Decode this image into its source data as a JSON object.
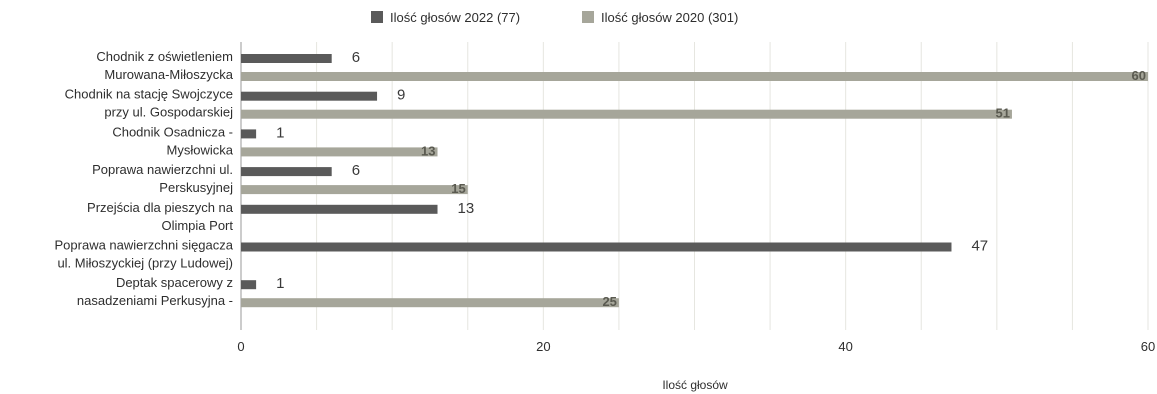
{
  "colors": {
    "series2022": "#5a5a5a",
    "series2020": "#a6a69a",
    "grid": "#e6e6e0",
    "text": "#2e2e2e"
  },
  "chart_data": {
    "type": "bar",
    "orientation": "horizontal",
    "title": "",
    "xlabel": "Ilość głosów",
    "ylabel": "",
    "xlim": [
      0,
      60
    ],
    "xticks": [
      0,
      20,
      40,
      60
    ],
    "grid": true,
    "legend_position": "top-center",
    "categories": [
      [
        "Chodnik z oświetleniem",
        "Murowana-Miłoszycka"
      ],
      [
        "Chodnik na stację Swojczyce",
        "przy ul. Gospodarskiej"
      ],
      [
        "Chodnik Osadnicza -",
        "Mysłowicka"
      ],
      [
        "Poprawa nawierzchni ul.",
        "Perskusyjnej"
      ],
      [
        "Przejścia dla pieszych na",
        "Olimpia Port"
      ],
      [
        "Poprawa nawierzchni sięgacza",
        "ul. Miłoszyckiej (przy Ludowej)"
      ],
      [
        "Deptak spacerowy z",
        "nasadzeniami Perkusyjna -"
      ]
    ],
    "series": [
      {
        "name": "Ilość głosów 2022 (77)",
        "values": [
          6,
          9,
          1,
          6,
          13,
          47,
          1
        ]
      },
      {
        "name": "Ilość głosów 2020 (301)",
        "values": [
          60,
          51,
          13,
          15,
          null,
          null,
          25
        ]
      }
    ]
  }
}
